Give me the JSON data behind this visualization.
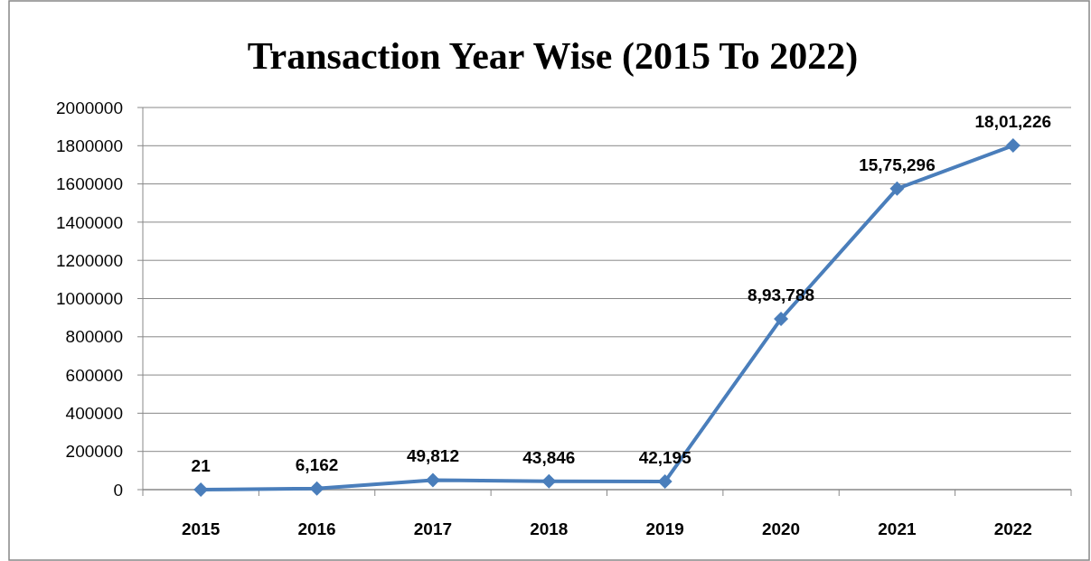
{
  "chart_data": {
    "type": "line",
    "title": "Transaction Year Wise (2015 To 2022)",
    "categories": [
      "2015",
      "2016",
      "2017",
      "2018",
      "2019",
      "2020",
      "2021",
      "2022"
    ],
    "series": [
      {
        "color": "#4a7ebb",
        "values": [
          21,
          6162,
          49812,
          43846,
          42195,
          893788,
          1575296,
          1801226
        ],
        "value_labels": [
          "21",
          "6,162",
          "49,812",
          "43,846",
          "42,195",
          "8,93,788",
          "15,75,296",
          "18,01,226"
        ]
      }
    ],
    "ylim": [
      0,
      2000000
    ],
    "yticks": [
      0,
      200000,
      400000,
      600000,
      800000,
      1000000,
      1200000,
      1400000,
      1600000,
      1800000,
      2000000
    ],
    "grid": "y",
    "marker": "diamond",
    "line_style": "solid"
  }
}
